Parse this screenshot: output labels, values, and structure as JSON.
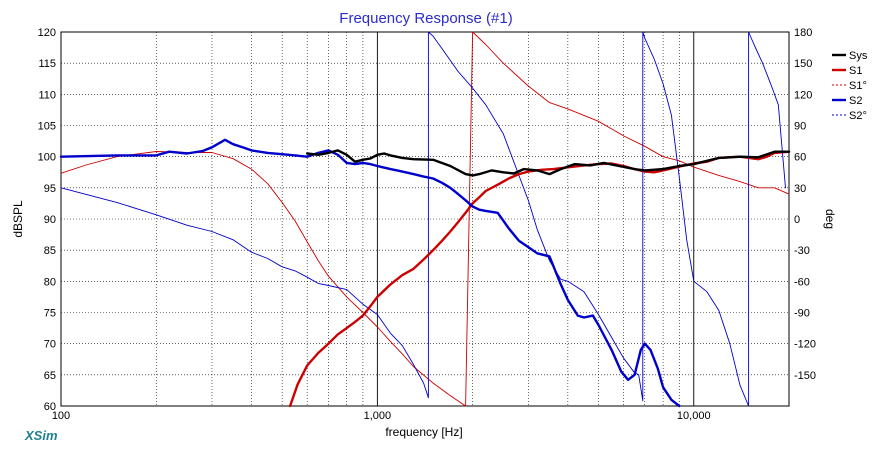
{
  "chart_data": {
    "type": "line",
    "title": "Frequency Response (#1)",
    "xlabel": "frequency [Hz]",
    "ylabel": "dBSPL",
    "y2label": "deg",
    "xscale": "log",
    "xlim": [
      100,
      20000
    ],
    "ylim": [
      60,
      120
    ],
    "y2lim": [
      -180,
      180
    ],
    "x_ticks": [
      {
        "value": 100,
        "label": "100"
      },
      {
        "value": 1000,
        "label": "1,000"
      },
      {
        "value": 10000,
        "label": "10,000"
      }
    ],
    "y_ticks": [
      120,
      115,
      110,
      105,
      100,
      95,
      90,
      85,
      80,
      75,
      70,
      65,
      60
    ],
    "y2_ticks": [
      180,
      150,
      120,
      90,
      60,
      30,
      0,
      -30,
      -60,
      -90,
      -120,
      -150
    ],
    "grid": true,
    "legend_position": "top-right",
    "brand": "XSim",
    "colors": {
      "title": "#2b2bd0",
      "sys": "#000000",
      "s1": "#cc0000",
      "s2": "#0000cc",
      "grid": "#000000",
      "brand": "#1f7f8f"
    },
    "series": [
      {
        "name": "Sys",
        "axis": "left",
        "style": "bold",
        "color": "#000000",
        "x": [
          600,
          650,
          700,
          750,
          800,
          850,
          900,
          950,
          1000,
          1050,
          1100,
          1200,
          1300,
          1500,
          1700,
          1900,
          2000,
          2100,
          2300,
          2500,
          2700,
          2900,
          3200,
          3500,
          3800,
          4200,
          4700,
          5200,
          5800,
          6500,
          7000,
          8000,
          9000,
          10000,
          12000,
          14000,
          16000,
          18000,
          20000
        ],
        "y": [
          100.5,
          100.3,
          100.6,
          101.0,
          100.3,
          99.2,
          99.5,
          99.7,
          100.3,
          100.5,
          100.2,
          99.8,
          99.6,
          99.5,
          98.5,
          97.2,
          97.0,
          97.2,
          97.8,
          97.5,
          97.3,
          98.0,
          97.8,
          97.2,
          98.0,
          98.8,
          98.6,
          99.0,
          98.5,
          98.0,
          97.8,
          98.0,
          98.5,
          98.8,
          99.8,
          100.0,
          99.9,
          100.8,
          100.8
        ]
      },
      {
        "name": "S1",
        "axis": "left",
        "style": "bold",
        "color": "#cc0000",
        "x": [
          530,
          560,
          600,
          650,
          700,
          750,
          800,
          850,
          900,
          950,
          1000,
          1100,
          1200,
          1300,
          1400,
          1500,
          1600,
          1700,
          1800,
          1900,
          2000,
          2100,
          2200,
          2400,
          2600,
          2800,
          3000,
          3300,
          3600,
          4000,
          4500,
          5000,
          5500,
          6000,
          6500,
          7000,
          7500,
          8000,
          9000,
          10000,
          11000,
          12000,
          14000,
          16000,
          17000,
          18000,
          20000
        ],
        "y": [
          60.0,
          63.5,
          66.5,
          68.5,
          70.0,
          71.5,
          72.5,
          73.5,
          74.5,
          76.0,
          77.5,
          79.5,
          81.0,
          82.0,
          83.5,
          85.0,
          86.5,
          88.0,
          89.5,
          91.0,
          92.5,
          93.5,
          94.5,
          95.5,
          96.5,
          97.2,
          97.6,
          97.9,
          98.0,
          98.3,
          98.6,
          98.8,
          98.9,
          98.5,
          98.0,
          97.6,
          97.5,
          97.8,
          98.4,
          98.9,
          99.2,
          99.8,
          100.0,
          99.6,
          100.0,
          100.6,
          100.8
        ]
      },
      {
        "name": "S1°",
        "axis": "right",
        "style": "thin",
        "color": "#cc0000",
        "x": [
          100,
          120,
          150,
          200,
          250,
          300,
          350,
          400,
          450,
          500,
          550,
          600,
          650,
          700,
          800,
          900,
          1000,
          1100,
          1200,
          1300,
          1500,
          1700,
          1900,
          2000,
          2200,
          2500,
          3000,
          3500,
          4000,
          5000,
          6000,
          7000,
          8000,
          9000,
          10000,
          12000,
          14000,
          16000,
          18000,
          20000
        ],
        "y": [
          44,
          52,
          60,
          65,
          64,
          64,
          58,
          48,
          34,
          16,
          -2,
          -22,
          -40,
          -55,
          -75,
          -90,
          -104,
          -118,
          -130,
          -142,
          -158,
          -170,
          -180,
          180,
          168,
          150,
          128,
          112,
          106,
          94,
          80,
          70,
          60,
          56,
          50,
          42,
          36,
          30,
          30,
          24
        ]
      },
      {
        "name": "S2",
        "axis": "left",
        "style": "bold",
        "color": "#0000cc",
        "x": [
          100,
          150,
          200,
          220,
          250,
          280,
          300,
          330,
          350,
          380,
          400,
          450,
          500,
          550,
          600,
          650,
          700,
          750,
          800,
          850,
          900,
          950,
          1000,
          1100,
          1200,
          1300,
          1400,
          1500,
          1600,
          1700,
          1800,
          1900,
          2000,
          2100,
          2200,
          2400,
          2600,
          2800,
          3000,
          3200,
          3500,
          3800,
          4000,
          4300,
          4500,
          4800,
          5000,
          5500,
          5900,
          6200,
          6500,
          6800,
          7000,
          7300,
          7700,
          8000,
          8500,
          9000
        ],
        "y": [
          100.0,
          100.2,
          100.2,
          100.8,
          100.5,
          100.9,
          101.5,
          102.7,
          102.0,
          101.4,
          101.0,
          100.6,
          100.4,
          100.2,
          100.0,
          100.6,
          101.0,
          100.3,
          99.0,
          98.8,
          99.0,
          98.8,
          98.5,
          98.0,
          97.6,
          97.2,
          96.8,
          96.5,
          95.8,
          95.0,
          94.0,
          93.0,
          92.0,
          91.5,
          91.3,
          91.0,
          88.5,
          86.5,
          85.5,
          84.5,
          84.0,
          79.5,
          77.0,
          74.5,
          74.2,
          74.5,
          73.0,
          69.0,
          65.5,
          64.2,
          65.0,
          69.0,
          70.0,
          69.0,
          66.0,
          63.0,
          61.0,
          60.0
        ]
      },
      {
        "name": "S2°",
        "axis": "right",
        "style": "thin",
        "color": "#0000cc",
        "x": [
          100,
          150,
          200,
          250,
          300,
          350,
          400,
          450,
          500,
          550,
          600,
          650,
          700,
          800,
          900,
          1000,
          1100,
          1200,
          1300,
          1400,
          1450,
          1450,
          1500,
          1600,
          1800,
          2000,
          2200,
          2500,
          2800,
          3000,
          3200,
          3500,
          3800,
          4000,
          4500,
          5000,
          5500,
          6000,
          6500,
          6700,
          6900,
          6900,
          7000,
          7500,
          8000,
          8500,
          9000,
          9500,
          10000,
          11000,
          12000,
          13000,
          14000,
          14900,
          14900,
          15500,
          16500,
          17500,
          18500,
          19500
        ],
        "y": [
          30,
          16,
          4,
          -6,
          -12,
          -20,
          -32,
          -38,
          -46,
          -50,
          -56,
          -62,
          -64,
          -68,
          -82,
          -92,
          -110,
          -122,
          -140,
          -158,
          -172,
          180,
          176,
          164,
          142,
          126,
          110,
          82,
          42,
          18,
          -10,
          -40,
          -58,
          -60,
          -70,
          -92,
          -114,
          -134,
          -148,
          -150,
          -175,
          180,
          174,
          154,
          130,
          100,
          40,
          -20,
          -60,
          -70,
          -88,
          -120,
          -160,
          -180,
          180,
          168,
          150,
          130,
          110,
          30
        ]
      }
    ]
  }
}
